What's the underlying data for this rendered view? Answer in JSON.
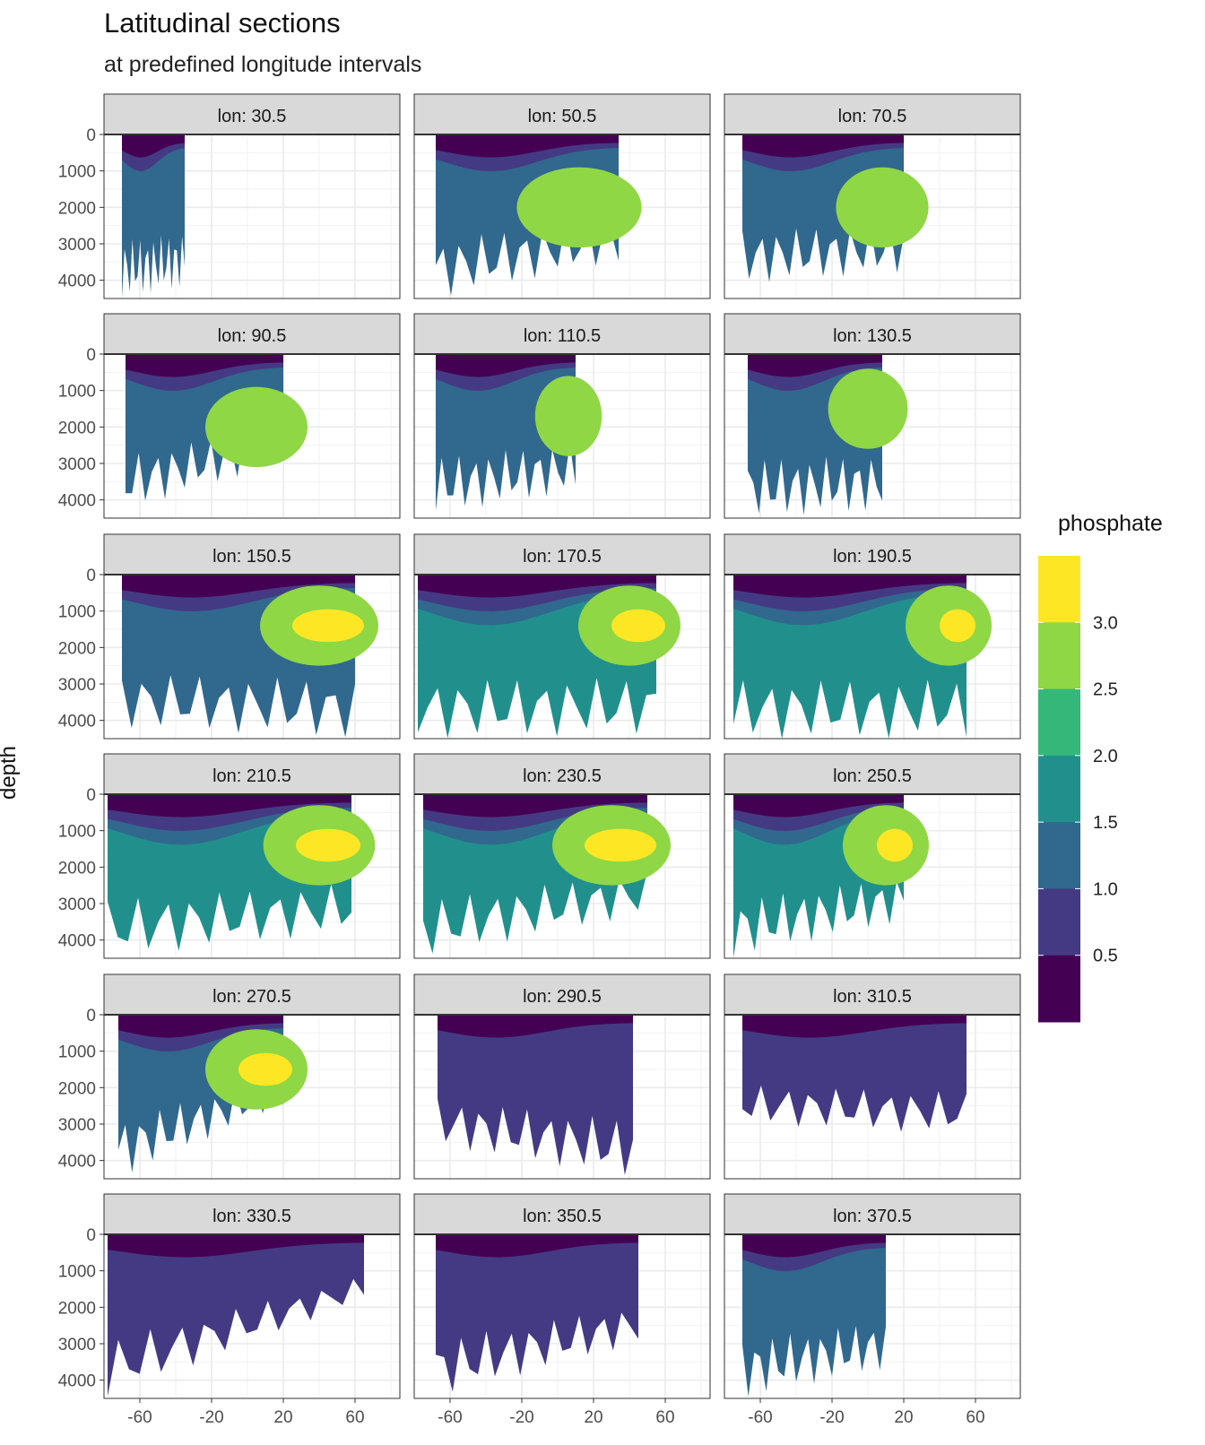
{
  "chart_data": {
    "type": "contour-facets",
    "title": "Latitudinal sections",
    "subtitle": "at predefined longitude intervals",
    "ylabel": "depth",
    "xlabel": "",
    "y_axis": {
      "ticks": [
        0,
        1000,
        2000,
        3000,
        4000
      ],
      "range": [
        0,
        4500
      ],
      "reversed": true
    },
    "x_axis": {
      "ticks": [
        -60,
        -20,
        20,
        60
      ],
      "range": [
        -80,
        85
      ]
    },
    "grid": true,
    "legend": {
      "title": "phosphate",
      "position": "right",
      "labels": [
        "3.0",
        "2.5",
        "2.0",
        "1.5",
        "1.0",
        "0.5"
      ],
      "bins": [
        {
          "range": [
            3.0,
            3.5
          ],
          "color": "#fde725"
        },
        {
          "range": [
            2.5,
            3.0
          ],
          "color": "#8fd744"
        },
        {
          "range": [
            2.0,
            2.5
          ],
          "color": "#35b779"
        },
        {
          "range": [
            1.5,
            2.0
          ],
          "color": "#21908d"
        },
        {
          "range": [
            1.0,
            1.5
          ],
          "color": "#31688e"
        },
        {
          "range": [
            0.5,
            1.0
          ],
          "color": "#443a83"
        },
        {
          "range": [
            0.0,
            0.5
          ],
          "color": "#440154"
        }
      ]
    },
    "panels": [
      {
        "label": "lon: 30.5",
        "lat_range": [
          -70,
          -35
        ],
        "max_depth": [
          4500,
          4200
        ],
        "deep": 2,
        "intrusion": null
      },
      {
        "label": "lon: 50.5",
        "lat_range": [
          -68,
          34
        ],
        "max_depth": [
          4500,
          3500
        ],
        "deep": 2,
        "intrusion": {
          "lat": 12,
          "depth": 2000,
          "level": 5
        }
      },
      {
        "label": "lon: 70.5",
        "lat_range": [
          -70,
          20
        ],
        "max_depth": [
          4100,
          3800
        ],
        "deep": 2,
        "intrusion": {
          "lat": 8,
          "depth": 2000,
          "level": 5
        }
      },
      {
        "label": "lon: 90.5",
        "lat_range": [
          -68,
          20
        ],
        "max_depth": [
          4300,
          3000
        ],
        "deep": 2,
        "intrusion": {
          "lat": 5,
          "depth": 2000,
          "level": 5
        }
      },
      {
        "label": "lon: 110.5",
        "lat_range": [
          -68,
          10
        ],
        "max_depth": [
          4400,
          3800
        ],
        "deep": 2,
        "intrusion": {
          "lat": 6,
          "depth": 1700,
          "level": 5
        }
      },
      {
        "label": "lon: 130.5",
        "lat_range": [
          -67,
          8
        ],
        "max_depth": [
          4500,
          4300
        ],
        "deep": 2,
        "intrusion": {
          "lat": 0,
          "depth": 1500,
          "level": 5
        }
      },
      {
        "label": "lon: 150.5",
        "lat_range": [
          -70,
          60
        ],
        "max_depth": [
          4200,
          4500
        ],
        "deep": 2,
        "intrusion": {
          "lat": 40,
          "depth": 1400,
          "level": 6
        }
      },
      {
        "label": "lon: 170.5",
        "lat_range": [
          -78,
          55
        ],
        "max_depth": [
          4500,
          4400
        ],
        "deep": 3,
        "intrusion": {
          "lat": 40,
          "depth": 1400,
          "level": 6
        }
      },
      {
        "label": "lon: 190.5",
        "lat_range": [
          -75,
          55
        ],
        "max_depth": [
          4500,
          4500
        ],
        "deep": 3,
        "intrusion": {
          "lat": 45,
          "depth": 1400,
          "level": 6
        }
      },
      {
        "label": "lon: 210.5",
        "lat_range": [
          -78,
          58
        ],
        "max_depth": [
          4500,
          3800
        ],
        "deep": 3,
        "intrusion": {
          "lat": 40,
          "depth": 1400,
          "level": 6
        }
      },
      {
        "label": "lon: 230.5",
        "lat_range": [
          -75,
          50
        ],
        "max_depth": [
          4500,
          3300
        ],
        "deep": 3,
        "intrusion": {
          "lat": 30,
          "depth": 1400,
          "level": 6
        }
      },
      {
        "label": "lon: 250.5",
        "lat_range": [
          -75,
          20
        ],
        "max_depth": [
          4500,
          3500
        ],
        "deep": 3,
        "intrusion": {
          "lat": 10,
          "depth": 1400,
          "level": 6
        }
      },
      {
        "label": "lon: 270.5",
        "lat_range": [
          -72,
          20
        ],
        "max_depth": [
          4500,
          2500
        ],
        "deep": 2,
        "intrusion": {
          "lat": 5,
          "depth": 1500,
          "level": 6
        }
      },
      {
        "label": "lon: 290.5",
        "lat_range": [
          -67,
          42
        ],
        "max_depth": [
          3600,
          4500
        ],
        "deep": 1,
        "intrusion": null
      },
      {
        "label": "lon: 310.5",
        "lat_range": [
          -70,
          55
        ],
        "max_depth": [
          3000,
          3300
        ],
        "deep": 1,
        "intrusion": null
      },
      {
        "label": "lon: 330.5",
        "lat_range": [
          -78,
          65
        ],
        "max_depth": [
          4500,
          1800
        ],
        "deep": 1,
        "intrusion": null
      },
      {
        "label": "lon: 350.5",
        "lat_range": [
          -68,
          45
        ],
        "max_depth": [
          4500,
          3000
        ],
        "deep": 1,
        "intrusion": null
      },
      {
        "label": "lon: 370.5",
        "lat_range": [
          -70,
          10
        ],
        "max_depth": [
          4500,
          3700
        ],
        "deep": 2,
        "intrusion": null
      }
    ]
  }
}
